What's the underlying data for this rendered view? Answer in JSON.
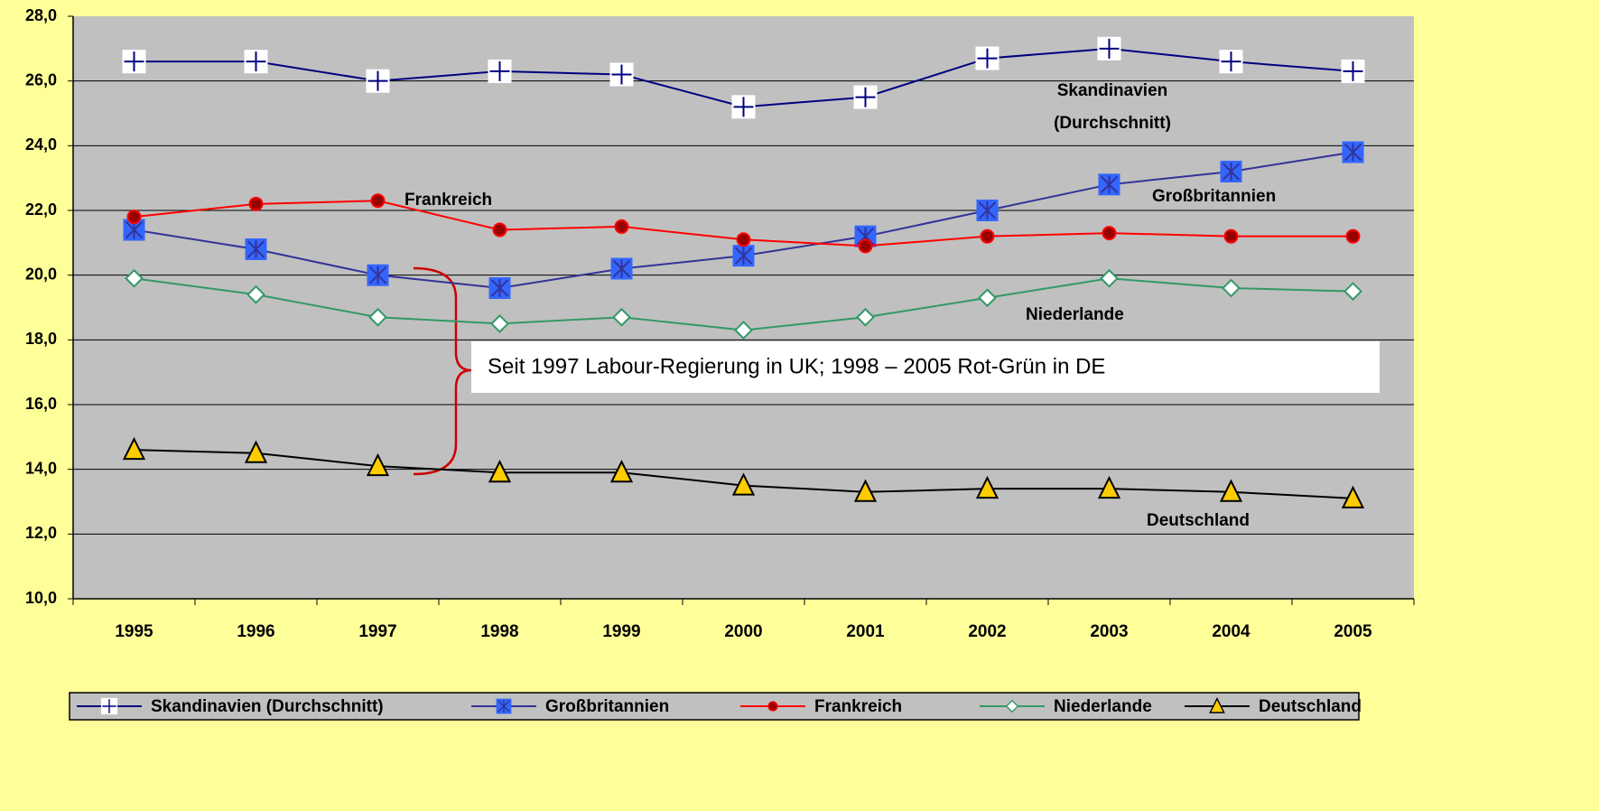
{
  "chart_data": {
    "type": "line",
    "categories": [
      "1995",
      "1996",
      "1997",
      "1998",
      "1999",
      "2000",
      "2001",
      "2002",
      "2003",
      "2004",
      "2005"
    ],
    "series": [
      {
        "name": "Skandinavien (Durchschnitt)",
        "color": "#000080",
        "values": [
          26.6,
          26.6,
          26.0,
          26.3,
          26.2,
          25.2,
          25.5,
          26.7,
          27.0,
          26.6,
          26.3
        ]
      },
      {
        "name": "Großbritannien",
        "color": "#333399",
        "values": [
          21.4,
          20.8,
          20.0,
          19.6,
          20.2,
          20.6,
          21.2,
          22.0,
          22.8,
          23.2,
          23.8
        ]
      },
      {
        "name": "Frankreich",
        "color": "#FF0000",
        "values": [
          21.8,
          22.2,
          22.3,
          21.4,
          21.5,
          21.1,
          20.9,
          21.2,
          21.3,
          21.2,
          21.2
        ]
      },
      {
        "name": "Niederlande",
        "color": "#339966",
        "values": [
          19.9,
          19.4,
          18.7,
          18.5,
          18.7,
          18.3,
          18.7,
          19.3,
          19.9,
          19.6,
          19.5
        ]
      },
      {
        "name": "Deutschland",
        "color": "#000000",
        "values": [
          14.6,
          14.5,
          14.1,
          13.9,
          13.9,
          13.5,
          13.3,
          13.4,
          13.4,
          13.3,
          13.1
        ]
      }
    ],
    "ylim": [
      10,
      28
    ],
    "yticks": [
      {
        "value": 10,
        "label": "10,0"
      },
      {
        "value": 12,
        "label": "12,0"
      },
      {
        "value": 14,
        "label": "14,0"
      },
      {
        "value": 16,
        "label": "16,0"
      },
      {
        "value": 18,
        "label": "18,0"
      },
      {
        "value": 20,
        "label": "20,0"
      },
      {
        "value": 22,
        "label": "22,0"
      },
      {
        "value": 24,
        "label": "24,0"
      },
      {
        "value": 26,
        "label": "26,0"
      },
      {
        "value": 28,
        "label": "28,0"
      }
    ],
    "grid": true,
    "legend": "bottom",
    "annotations": [
      "Skandinavien",
      "(Durchschnitt)",
      "Frankreich",
      "Großbritannien",
      "Niederlande",
      "Deutschland",
      "Seit 1997 Labour-Regierung in UK; 1998 – 2005 Rot-Grün in DE"
    ]
  }
}
